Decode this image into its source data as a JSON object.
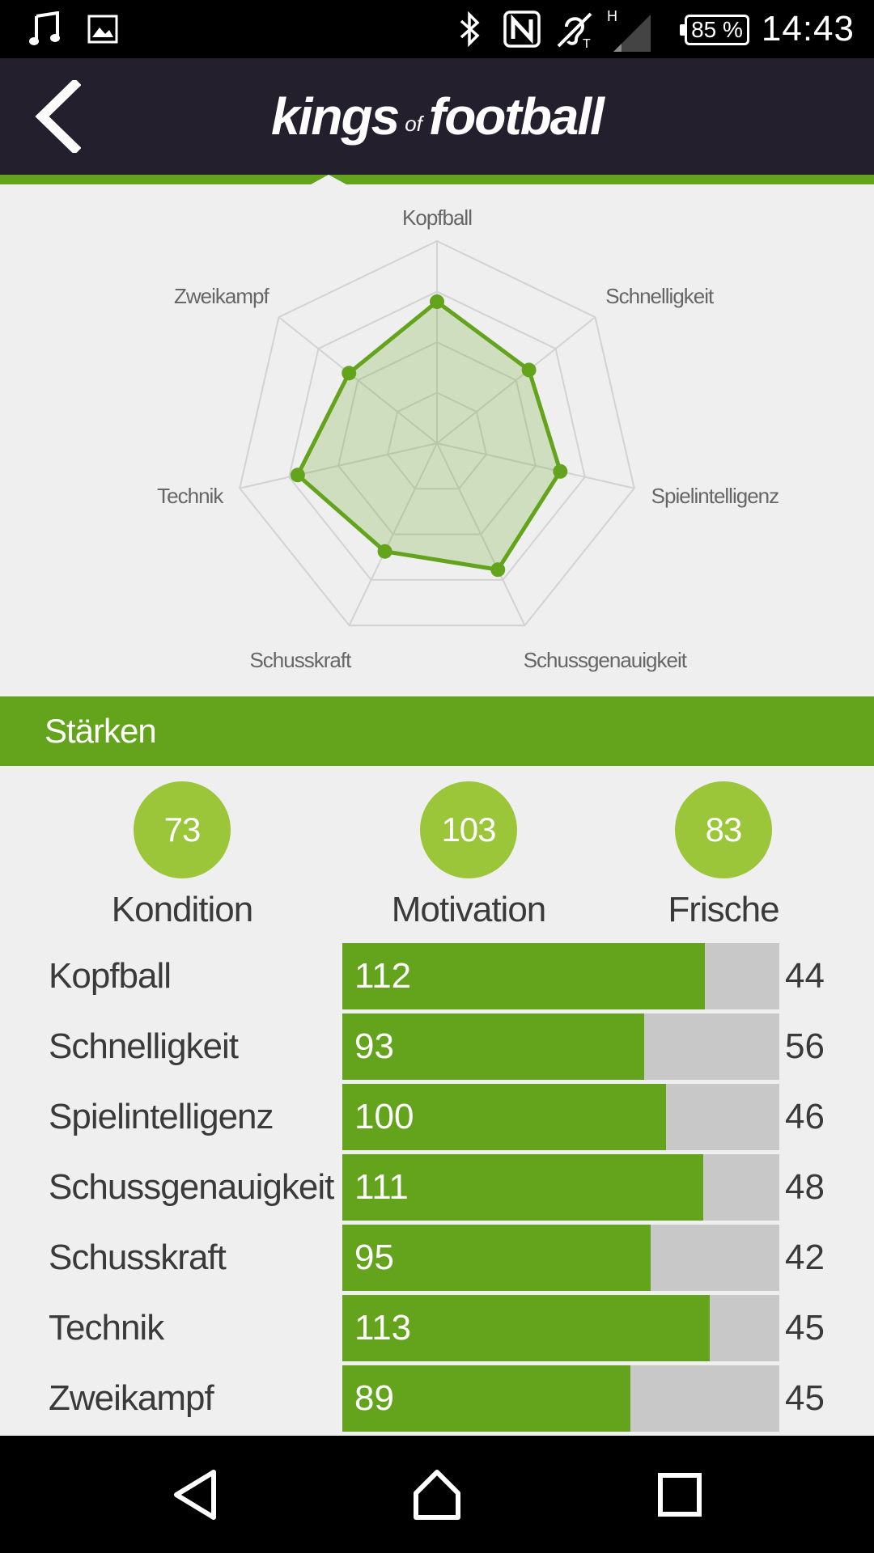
{
  "status_bar": {
    "time": "14:43",
    "battery": "85 %",
    "network_type": "H",
    "icons": [
      "music-icon",
      "image-icon",
      "bluetooth-icon",
      "nfc-icon",
      "hearing-aid-icon",
      "signal-icon",
      "battery-icon"
    ]
  },
  "header": {
    "logo_main_1": "kings",
    "logo_small": "of",
    "logo_main_2": "football"
  },
  "radar": {
    "labels": [
      "Kopfball",
      "Schnelligkeit",
      "Spielintelligenz",
      "Schussgenauigkeit",
      "Schusskraft",
      "Technik",
      "Zweikampf"
    ]
  },
  "chart_data": {
    "type": "radar",
    "categories": [
      "Kopfball",
      "Schnelligkeit",
      "Spielintelligenz",
      "Schussgenauigkeit",
      "Schusskraft",
      "Technik",
      "Zweikampf"
    ],
    "values": [
      112,
      93,
      100,
      111,
      95,
      113,
      89
    ],
    "rmax": 160,
    "grid": true,
    "color": "#64a41d"
  },
  "section": {
    "title": "Stärken"
  },
  "stats": [
    {
      "value": "73",
      "label": "Kondition"
    },
    {
      "value": "103",
      "label": "Motivation"
    },
    {
      "value": "83",
      "label": "Frische"
    }
  ],
  "attributes": [
    {
      "name": "Kopfball",
      "value": "112",
      "max": "44",
      "fill": 0.83
    },
    {
      "name": "Schnelligkeit",
      "value": "93",
      "max": "56",
      "fill": 0.69
    },
    {
      "name": "Spielintelligenz",
      "value": "100",
      "max": "46",
      "fill": 0.74
    },
    {
      "name": "Schussgenauigkeit",
      "value": "111",
      "max": "48",
      "fill": 0.825
    },
    {
      "name": "Schusskraft",
      "value": "95",
      "max": "42",
      "fill": 0.705
    },
    {
      "name": "Technik",
      "value": "113",
      "max": "45",
      "fill": 0.84
    },
    {
      "name": "Zweikampf",
      "value": "89",
      "max": "45",
      "fill": 0.66
    }
  ],
  "colors": {
    "accent": "#64a41d",
    "circle": "#9bc63a",
    "header_bg": "#231f2d",
    "bar_bg": "#c8c8c8",
    "page_bg": "#efefef"
  }
}
